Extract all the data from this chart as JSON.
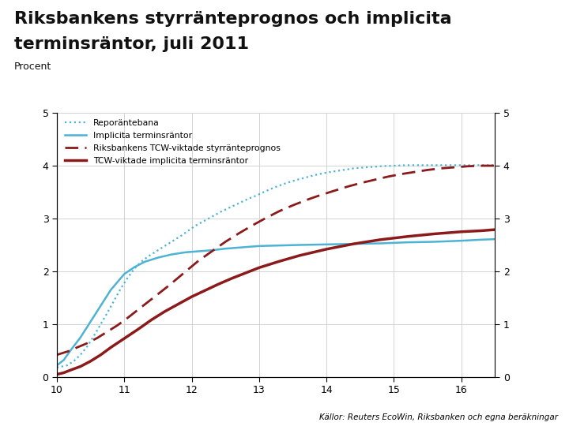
{
  "title_line1": "Riksbankens styrränteprognos och implicita",
  "title_line2": "terminsräntor, juli 2011",
  "subtitle": "Procent",
  "footer": "Källor: Reuters EcoWin, Riksbanken och egna beräkningar",
  "xlim": [
    10,
    16.5
  ],
  "ylim": [
    0,
    5
  ],
  "xticks": [
    10,
    11,
    12,
    13,
    14,
    15,
    16
  ],
  "yticks": [
    0,
    1,
    2,
    3,
    4,
    5
  ],
  "bg_color": "#ffffff",
  "plot_bg": "#ffffff",
  "footer_bg": "#1a3870",
  "footer_text_color": "#000000",
  "logo_bg": "#1a3870",
  "series": {
    "repo": {
      "label": "Reporäntebana",
      "color": "#4db3d4",
      "linestyle": "dotted",
      "linewidth": 1.6,
      "x": [
        10.0,
        10.08,
        10.15,
        10.25,
        10.35,
        10.45,
        10.55,
        10.65,
        10.75,
        10.85,
        10.95,
        11.05,
        11.15,
        11.25,
        11.35,
        11.45,
        11.55,
        11.65,
        11.75,
        11.85,
        11.95,
        12.05,
        12.15,
        12.25,
        12.35,
        12.45,
        12.55,
        12.65,
        12.75,
        12.85,
        12.95,
        13.1,
        13.25,
        13.4,
        13.55,
        13.7,
        13.85,
        14.0,
        14.2,
        14.4,
        14.6,
        14.8,
        15.0,
        15.2,
        15.4,
        15.6,
        15.8,
        16.0,
        16.2,
        16.4,
        16.5
      ],
      "y": [
        0.18,
        0.2,
        0.22,
        0.3,
        0.42,
        0.58,
        0.78,
        1.0,
        1.22,
        1.45,
        1.68,
        1.88,
        2.05,
        2.18,
        2.28,
        2.36,
        2.44,
        2.52,
        2.6,
        2.68,
        2.77,
        2.86,
        2.93,
        3.0,
        3.07,
        3.14,
        3.2,
        3.26,
        3.32,
        3.38,
        3.43,
        3.52,
        3.6,
        3.67,
        3.73,
        3.78,
        3.83,
        3.87,
        3.91,
        3.95,
        3.97,
        3.99,
        4.0,
        4.01,
        4.01,
        4.01,
        4.01,
        4.01,
        4.01,
        4.01,
        4.01
      ]
    },
    "implicit": {
      "label": "Implicita terminsräntor",
      "color": "#4db3d4",
      "linestyle": "solid",
      "linewidth": 1.8,
      "x": [
        10.0,
        10.1,
        10.2,
        10.35,
        10.5,
        10.65,
        10.8,
        11.0,
        11.15,
        11.3,
        11.5,
        11.7,
        11.9,
        12.1,
        12.3,
        12.5,
        12.7,
        13.0,
        13.3,
        13.6,
        14.0,
        14.4,
        14.8,
        15.2,
        15.6,
        16.0,
        16.3,
        16.5
      ],
      "y": [
        0.22,
        0.32,
        0.5,
        0.75,
        1.05,
        1.35,
        1.65,
        1.95,
        2.08,
        2.18,
        2.26,
        2.32,
        2.36,
        2.38,
        2.4,
        2.43,
        2.45,
        2.48,
        2.49,
        2.5,
        2.51,
        2.52,
        2.53,
        2.55,
        2.56,
        2.58,
        2.6,
        2.61
      ]
    },
    "riksbank_tcw": {
      "label": "Riksbankens TCW-viktade styrränteprognos",
      "color": "#8b1a1a",
      "linestyle": "dashed",
      "linewidth": 2.0,
      "x": [
        10.0,
        10.1,
        10.2,
        10.3,
        10.45,
        10.6,
        10.75,
        10.9,
        11.05,
        11.2,
        11.35,
        11.5,
        11.65,
        11.8,
        11.95,
        12.1,
        12.3,
        12.5,
        12.7,
        12.9,
        13.1,
        13.3,
        13.5,
        13.7,
        13.9,
        14.1,
        14.3,
        14.5,
        14.7,
        14.9,
        15.1,
        15.3,
        15.5,
        15.7,
        15.9,
        16.1,
        16.3,
        16.5
      ],
      "y": [
        0.42,
        0.46,
        0.5,
        0.56,
        0.64,
        0.74,
        0.86,
        0.98,
        1.12,
        1.27,
        1.42,
        1.57,
        1.72,
        1.88,
        2.04,
        2.2,
        2.38,
        2.56,
        2.72,
        2.87,
        3.01,
        3.14,
        3.25,
        3.35,
        3.44,
        3.52,
        3.6,
        3.67,
        3.73,
        3.79,
        3.84,
        3.88,
        3.92,
        3.95,
        3.97,
        3.99,
        4.0,
        4.0
      ]
    },
    "tcw_implicit": {
      "label": "TCW-viktade implicita terminsräntor",
      "color": "#8b1a1a",
      "linestyle": "solid",
      "linewidth": 2.5,
      "x": [
        10.0,
        10.1,
        10.2,
        10.35,
        10.5,
        10.65,
        10.8,
        11.0,
        11.2,
        11.4,
        11.6,
        11.8,
        12.0,
        12.2,
        12.4,
        12.6,
        12.8,
        13.0,
        13.3,
        13.6,
        14.0,
        14.4,
        14.8,
        15.2,
        15.6,
        16.0,
        16.3,
        16.5
      ],
      "y": [
        0.05,
        0.08,
        0.13,
        0.2,
        0.3,
        0.42,
        0.56,
        0.73,
        0.9,
        1.08,
        1.24,
        1.38,
        1.52,
        1.64,
        1.76,
        1.87,
        1.97,
        2.07,
        2.19,
        2.3,
        2.42,
        2.52,
        2.6,
        2.66,
        2.71,
        2.75,
        2.77,
        2.79
      ]
    }
  }
}
